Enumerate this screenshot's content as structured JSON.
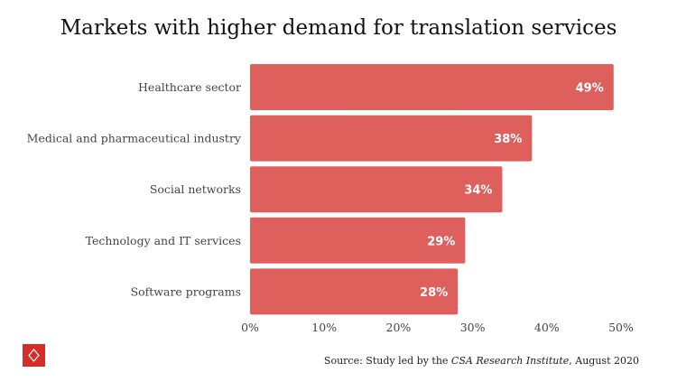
{
  "chart_data": {
    "type": "bar",
    "orientation": "horizontal",
    "title": "Markets with higher demand for translation services",
    "categories": [
      "Healthcare sector",
      "Medical and pharmaceutical industry",
      "Social networks",
      "Technology and IT services",
      "Software programs"
    ],
    "values": [
      49,
      38,
      34,
      29,
      28
    ],
    "data_labels": [
      "49%",
      "38%",
      "34%",
      "29%",
      "28%"
    ],
    "xlim": [
      0,
      50
    ],
    "x_ticks": [
      "0%",
      "10%",
      "20%",
      "30%",
      "40%",
      "50%"
    ],
    "grid": false,
    "bar_color": "#dd605c"
  },
  "source": {
    "prefix": "Source: Study led by the ",
    "institute": "CSA Research Institute",
    "suffix": ", August 2020"
  },
  "logo": {
    "color": "#d42d2a",
    "icon": "diamond-icon"
  }
}
